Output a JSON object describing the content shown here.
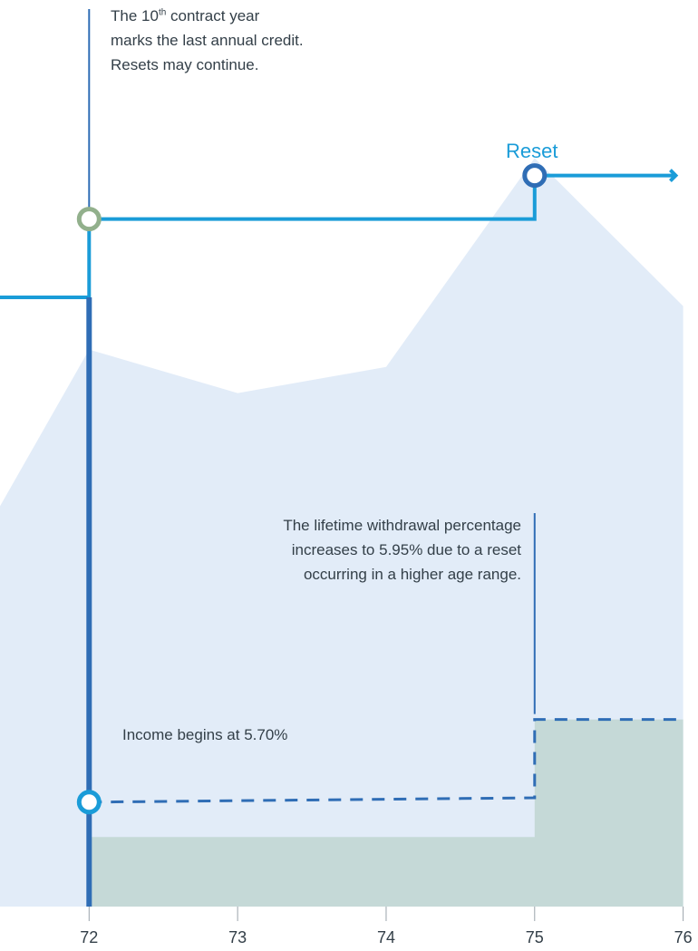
{
  "annotations": {
    "last_credit": {
      "pre": "The 10",
      "sup": "th",
      "post": " contract year",
      "line2": "marks the last annual credit.",
      "line3": "Resets may continue."
    },
    "reset_label": "Reset",
    "withdrawal_increase": {
      "line1": "The lifetime withdrawal percentage",
      "line2": "increases to 5.95% due to a reset",
      "line3": "occurring in a higher age range."
    },
    "income_begins": "Income begins at 5.70%"
  },
  "colors": {
    "area_fill": "#e2ecf8",
    "income_fill": "#c5d9d7",
    "benefit_line": "#1a9cd8",
    "axis_line": "#2f6db5",
    "annotation_line": "#2f6db5",
    "marker_green": "#92b08c",
    "dashed_line": "#2f6db5",
    "text": "#333f48"
  },
  "chart_data": {
    "type": "area",
    "x_tick_labels": [
      "72",
      "73",
      "74",
      "75",
      "76"
    ],
    "x": [
      71.4,
      72,
      73,
      74,
      75,
      76
    ],
    "series": [
      {
        "values": [
          46,
          64,
          59,
          62,
          86,
          69
        ]
      },
      {
        "values": [
          12,
          12,
          12,
          12,
          12.5,
          21.5
        ]
      },
      {
        "values": [
          8,
          8,
          8,
          8,
          8,
          8
        ]
      }
    ],
    "benefit_base_steps": [
      {
        "from": 71.4,
        "to": 72,
        "value": 70
      },
      {
        "from": 72,
        "to": 75,
        "value": 79
      },
      {
        "from": 75,
        "to": 76,
        "value": 84
      }
    ],
    "events": [
      {
        "age": 72,
        "type": "last-annual-credit"
      },
      {
        "age": 72,
        "type": "income-begins",
        "rate": 5.7
      },
      {
        "age": 75,
        "type": "reset",
        "rate": 5.95
      }
    ],
    "xlim": [
      71.4,
      76.1
    ],
    "ylim": [
      0,
      100
    ],
    "grid": false,
    "legend": "none"
  }
}
